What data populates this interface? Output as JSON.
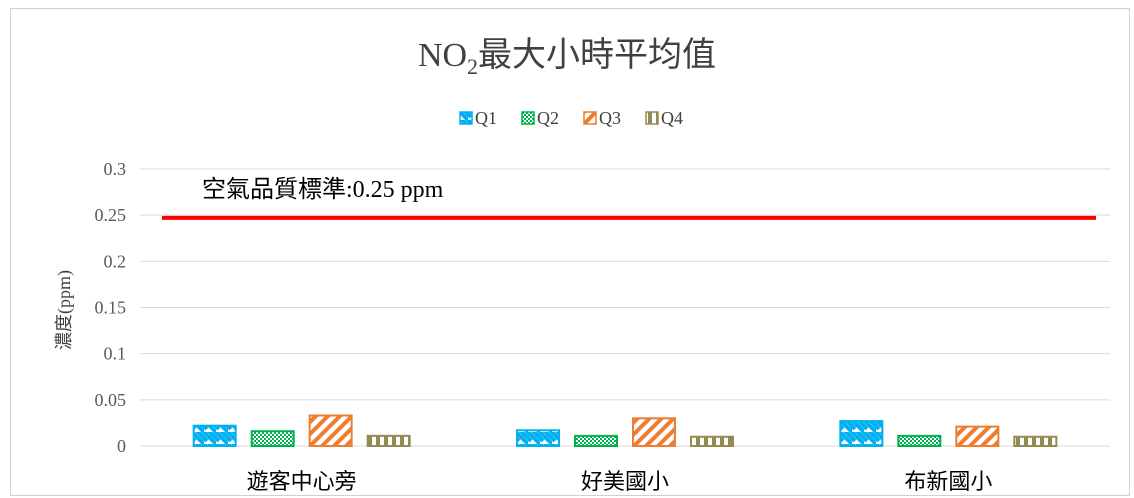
{
  "chart_data": {
    "type": "bar",
    "title_main": "NO",
    "title_sub": "2",
    "title_rest": "最大小時平均值",
    "ylabel": "濃度(ppm)",
    "categories": [
      "遊客中心旁",
      "好美國小",
      "布新國小"
    ],
    "series": [
      {
        "name": "Q1",
        "values": [
          0.022,
          0.017,
          0.027
        ],
        "color": "#00B0F0",
        "pattern": "diag-down"
      },
      {
        "name": "Q2",
        "values": [
          0.016,
          0.011,
          0.011
        ],
        "color": "#00B050",
        "pattern": "checker"
      },
      {
        "name": "Q3",
        "values": [
          0.033,
          0.03,
          0.021
        ],
        "color": "#ED7D31",
        "pattern": "diag-up"
      },
      {
        "name": "Q4",
        "values": [
          0.011,
          0.01,
          0.01
        ],
        "color": "#948A54",
        "pattern": "vertical"
      }
    ],
    "ylim": [
      0,
      0.3
    ],
    "yticks": [
      "0",
      "0.05",
      "0.1",
      "0.15",
      "0.2",
      "0.25",
      "0.3"
    ],
    "ytick_values": [
      0,
      0.05,
      0.1,
      0.15,
      0.2,
      0.25,
      0.3
    ],
    "reference_line": {
      "value": 0.247,
      "label": "空氣品質標準:0.25 ppm",
      "color": "#FF0000"
    },
    "grid": true,
    "legend_position": "top"
  }
}
